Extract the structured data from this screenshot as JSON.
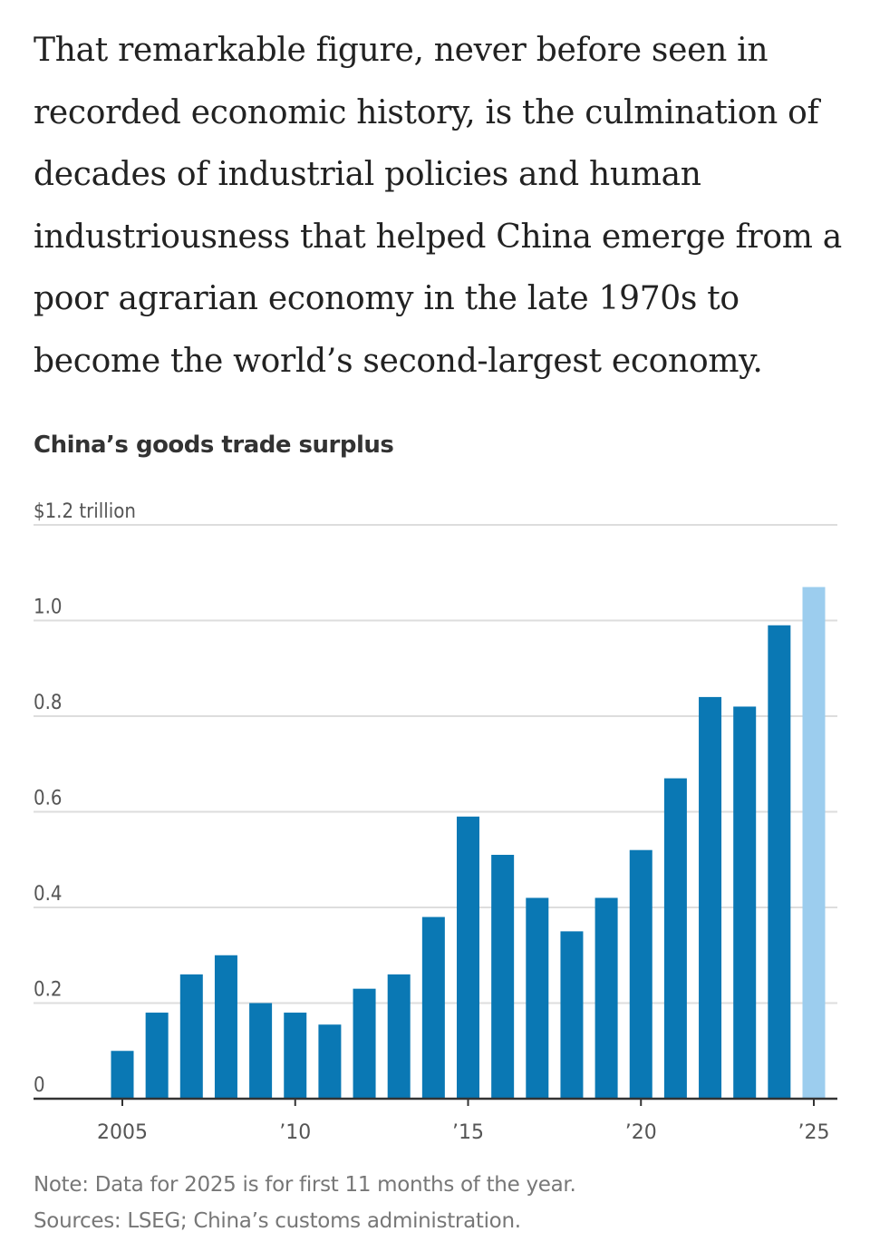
{
  "article": {
    "paragraph": "That remarkable figure, never before seen in recorded economic history, is the culmination of decades of industrial policies and human industriousness that helped China emerge from a poor agrarian economy in the late 1970s to become the world’s second-largest economy."
  },
  "chart_data": {
    "type": "bar",
    "title": "China’s goods trade surplus",
    "ylabel": "$1.2 trillion",
    "xlabel": "",
    "ylim": [
      0,
      1.2
    ],
    "yticks": [
      0,
      0.2,
      0.4,
      0.6,
      0.8,
      1.0,
      1.2
    ],
    "ytick_labels": [
      "0",
      "0.2",
      "0.4",
      "0.6",
      "0.8",
      "1.0",
      "$1.2 trillion"
    ],
    "xtick_labels": {
      "2005": "2005",
      "2010": "’10",
      "2015": "’15",
      "2020": "’20",
      "2025": "’25"
    },
    "grid": true,
    "categories": [
      2005,
      2006,
      2007,
      2008,
      2009,
      2010,
      2011,
      2012,
      2013,
      2014,
      2015,
      2016,
      2017,
      2018,
      2019,
      2020,
      2021,
      2022,
      2023,
      2024,
      2025
    ],
    "values": [
      0.1,
      0.18,
      0.26,
      0.3,
      0.2,
      0.18,
      0.155,
      0.23,
      0.26,
      0.38,
      0.59,
      0.51,
      0.42,
      0.35,
      0.42,
      0.52,
      0.67,
      0.84,
      0.82,
      0.99,
      1.07
    ],
    "colors": {
      "bar": "#0a78b4",
      "partial": "#9ccdee",
      "grid": "#dddddd",
      "axis": "#333333"
    },
    "partial_categories": [
      2025
    ]
  },
  "notes": {
    "note": "Note: Data for 2025 is for first 11 months of the year.",
    "sources": "Sources: LSEG; China’s customs administration."
  }
}
